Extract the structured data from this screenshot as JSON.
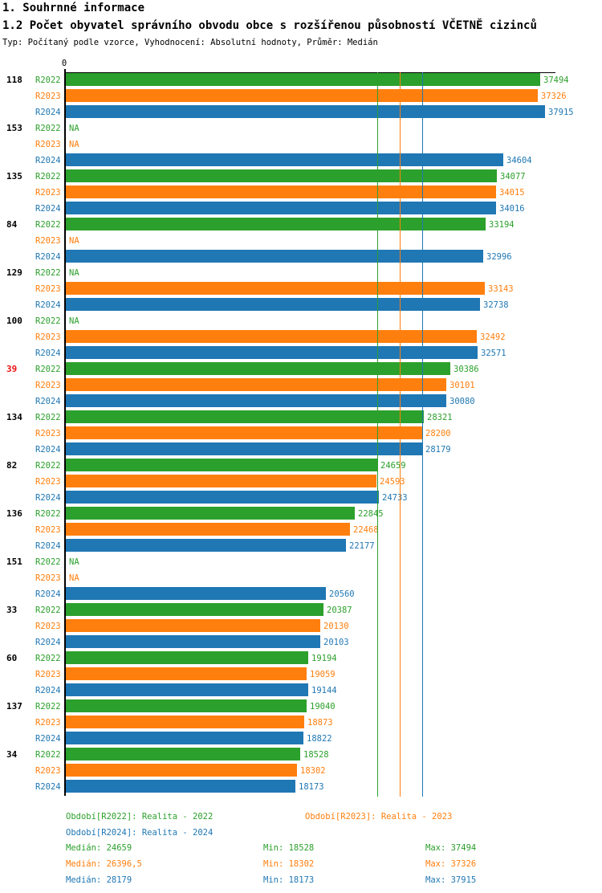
{
  "header": {
    "title1": "1. Souhrnné informace",
    "title2": "1.2 Počet obyvatel správního obvodu obce s rozšířenou působností VČETNĚ cizinců",
    "subtitle": "Typ: Počítaný podle vzorce, Vyhodnocení: Absolutní hodnoty, Průměr: Medián"
  },
  "axis": {
    "zero_label": "0"
  },
  "colors": {
    "r2022": "#2ca02c",
    "r2023": "#ff7f0e",
    "r2024": "#1f77b4",
    "highlight_group_label": "#ee1111",
    "axis": "#000000"
  },
  "chart_data": {
    "type": "bar",
    "orientation": "horizontal",
    "title": "1.2 Počet obyvatel správního obvodu obce s rozšířenou působností VČETNĚ cizinců",
    "xlabel": "",
    "ylabel": "",
    "x_origin_label": "0",
    "na_text": "NA",
    "series_labels": [
      "R2022",
      "R2023",
      "R2024"
    ],
    "groups": [
      {
        "label": "118",
        "highlight": false,
        "values": [
          37494,
          37326,
          37915
        ]
      },
      {
        "label": "153",
        "highlight": false,
        "values": [
          null,
          null,
          34604
        ]
      },
      {
        "label": "135",
        "highlight": false,
        "values": [
          34077,
          34015,
          34016
        ]
      },
      {
        "label": "84",
        "highlight": false,
        "values": [
          33194,
          null,
          32996
        ]
      },
      {
        "label": "129",
        "highlight": false,
        "values": [
          null,
          33143,
          32738
        ]
      },
      {
        "label": "100",
        "highlight": false,
        "values": [
          null,
          32492,
          32571
        ]
      },
      {
        "label": "39",
        "highlight": true,
        "values": [
          30386,
          30101,
          30080
        ]
      },
      {
        "label": "134",
        "highlight": false,
        "values": [
          28321,
          28200,
          28179
        ]
      },
      {
        "label": "82",
        "highlight": false,
        "values": [
          24659,
          24593,
          24733
        ]
      },
      {
        "label": "136",
        "highlight": false,
        "values": [
          22845,
          22468,
          22177
        ]
      },
      {
        "label": "151",
        "highlight": false,
        "values": [
          null,
          null,
          20560
        ]
      },
      {
        "label": "33",
        "highlight": false,
        "values": [
          20387,
          20130,
          20103
        ]
      },
      {
        "label": "60",
        "highlight": false,
        "values": [
          19194,
          19059,
          19144
        ]
      },
      {
        "label": "137",
        "highlight": false,
        "values": [
          19040,
          18873,
          18822
        ]
      },
      {
        "label": "34",
        "highlight": false,
        "values": [
          18528,
          18302,
          18173
        ]
      }
    ],
    "median_reference_lines": [
      24659,
      26396.5,
      28179
    ],
    "stats_numeric": {
      "r2022": {
        "median": 24659,
        "min": 18528,
        "max": 37494
      },
      "r2023": {
        "median": 26396.5,
        "min": 18302,
        "max": 37326
      },
      "r2024": {
        "median": 28179,
        "min": 18173,
        "max": 37915
      }
    }
  },
  "legend": {
    "r2022": "Období[R2022]: Realita - 2022",
    "r2023": "Období[R2023]: Realita - 2023",
    "r2024": "Období[R2024]: Realita - 2024"
  },
  "stats": {
    "r2022": {
      "median": "Medián: 24659",
      "min": "Min: 18528",
      "max": "Max: 37494"
    },
    "r2023": {
      "median": "Medián: 26396,5",
      "min": "Min: 18302",
      "max": "Max: 37326"
    },
    "r2024": {
      "median": "Medián: 28179",
      "min": "Min: 18173",
      "max": "Max: 37915"
    }
  }
}
